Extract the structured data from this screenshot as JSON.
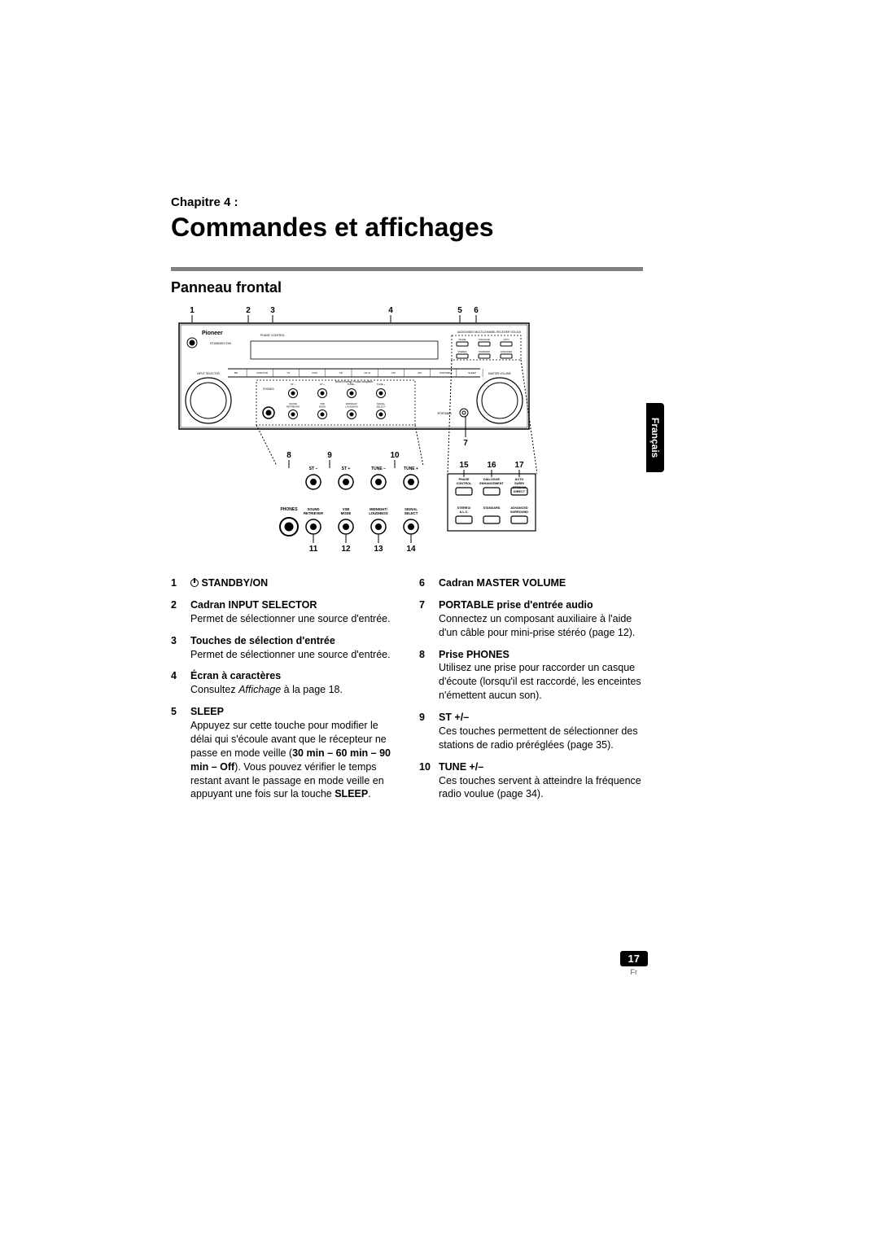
{
  "chapter_label": "Chapitre 4 :",
  "main_title": "Commandes et affichages",
  "section_heading": "Panneau frontal",
  "diagram": {
    "top_callouts": [
      "1",
      "2",
      "3",
      "4",
      "5",
      "6"
    ],
    "right_callout": "7",
    "mid_callouts": [
      "8",
      "9",
      "10"
    ],
    "bottom_callouts": [
      "11",
      "12",
      "13",
      "14"
    ],
    "zoom_callouts": [
      "15",
      "16",
      "17"
    ],
    "panel_text": {
      "brand": "Pioneer",
      "standby": "STANDBY/ON",
      "input_selector": "INPUT SELECTOR",
      "master_volume": "MASTER VOLUME",
      "phase_control": "PHASE CONTROL",
      "model_line": "AUDIO/VIDEO MULTI-CHANNEL RECEIVER  VSX-519",
      "amp_line": "Direct Energy Power Amplifier",
      "input_buttons": [
        "BD",
        "DVR/VCR",
        "TV",
        "DVD",
        "CD",
        "CD-R",
        "FM",
        "AM",
        "PORTABLE",
        "SLEEP"
      ],
      "knob_row1": [
        "ST –",
        "ST +",
        "TUNE –",
        "TUNE +"
      ],
      "phones": "PHONES",
      "knob_row2": [
        "SOUND RETRIEVER",
        "VSB MODE",
        "MIDNIGHT/ LOUDNESS",
        "SIGNAL SELECT"
      ],
      "iportable": "iPORTABLE",
      "box_top": [
        "PHASE CONTROL",
        "DIALOGUE ENHANCEMENT",
        "AUTO SURR/ STREAM DIRECT"
      ],
      "box_bot": [
        "STEREO/ A.L.C.",
        "STANDARD",
        "ADVANCED SURROUND"
      ]
    },
    "colors": {
      "stroke": "#000000",
      "dash": "#000000",
      "bg": "#ffffff"
    }
  },
  "left_items": [
    {
      "num": "1",
      "title_prefix_icon": true,
      "title": "STANDBY/ON",
      "body": ""
    },
    {
      "num": "2",
      "title": "Cadran INPUT SELECTOR",
      "body": "Permet de sélectionner une source d'entrée."
    },
    {
      "num": "3",
      "title": "Touches de sélection d'entrée",
      "body": "Permet de sélectionner une source d'entrée."
    },
    {
      "num": "4",
      "title": "Écran à caractères",
      "body_html": "Consultez <i>Affichage</i> à la page 18."
    },
    {
      "num": "5",
      "title": "SLEEP",
      "body_html": "Appuyez sur cette touche pour modifier le délai qui s'écoule avant que le récepteur ne passe en mode veille (<b>30 min – 60 min – 90 min – Off</b>). Vous pouvez vérifier le temps restant avant le passage en mode veille en appuyant une fois sur la touche <b>SLEEP</b>."
    }
  ],
  "right_items": [
    {
      "num": "6",
      "title": "Cadran MASTER VOLUME",
      "body": ""
    },
    {
      "num": "7",
      "title": "PORTABLE prise d'entrée audio",
      "body": "Connectez un composant auxiliaire à l'aide d'un câble pour mini-prise stéréo (page 12)."
    },
    {
      "num": "8",
      "title": "Prise PHONES",
      "body": "Utilisez une prise pour raccorder un casque d'écoute (lorsqu'il est raccordé, les enceintes n'émettent aucun son)."
    },
    {
      "num": "9",
      "title": "ST +/–",
      "body": "Ces touches permettent de sélectionner des stations de radio préréglées (page 35)."
    },
    {
      "num": "10",
      "title": "TUNE +/–",
      "body": "Ces touches servent à atteindre la fréquence radio voulue (page 34)."
    }
  ],
  "lang_tab": "Français",
  "page_number": "17",
  "page_lang": "Fr"
}
